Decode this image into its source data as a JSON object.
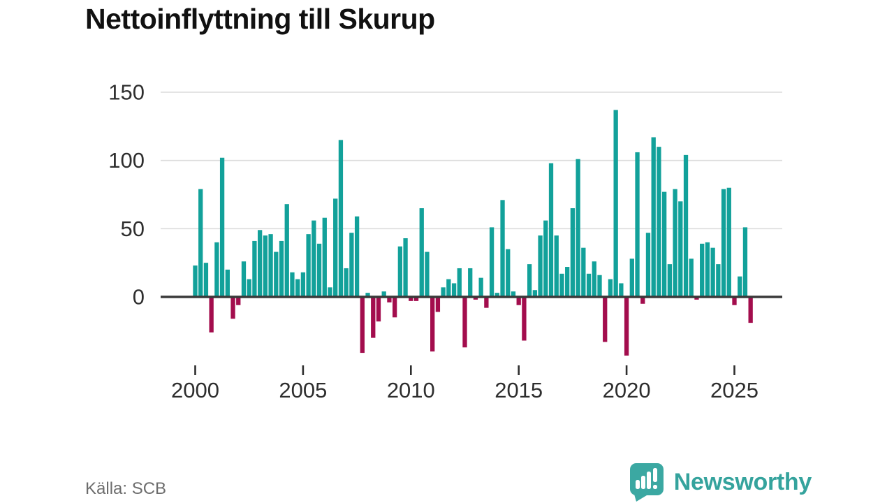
{
  "title": "Nettoinflyttning till Skurup",
  "source": "Källa: SCB",
  "brand": {
    "name": "Newsworthy",
    "color": "#3ba8a2"
  },
  "colors": {
    "positive_bar": "#12a19a",
    "negative_bar": "#a30d4d",
    "grid": "#dcdcdc",
    "axis": "#3a3a3a",
    "tick_text": "#2e2e2e",
    "muted_text": "#6d6d6d"
  },
  "chart_data": {
    "type": "bar",
    "title": "Nettoinflyttning till Skurup",
    "ylabel": "",
    "xlabel": "",
    "unit": "net migration per quarter (persons)",
    "frequency": "quarterly",
    "x_start": "2000Q1",
    "x_end": "2025Q4",
    "x_tick_years": [
      2000,
      2005,
      2010,
      2015,
      2020,
      2025
    ],
    "y_ticks": [
      0,
      50,
      100,
      150
    ],
    "ylim": [
      -50,
      158
    ],
    "grid": true,
    "legend": "none",
    "values": [
      23,
      79,
      25,
      -26,
      40,
      102,
      20,
      -16,
      -6,
      26,
      13,
      41,
      49,
      45,
      46,
      33,
      41,
      68,
      18,
      13,
      18,
      46,
      56,
      39,
      58,
      7,
      72,
      115,
      21,
      47,
      59,
      -41,
      3,
      -30,
      -18,
      4,
      -4,
      -15,
      37,
      43,
      -3,
      -3,
      65,
      33,
      -40,
      -11,
      7,
      13,
      10,
      21,
      -37,
      21,
      -2,
      14,
      -8,
      51,
      3,
      71,
      35,
      4,
      -6,
      -32,
      24,
      5,
      45,
      56,
      98,
      45,
      17,
      22,
      65,
      101,
      36,
      17,
      26,
      16,
      -33,
      13,
      137,
      10,
      -43,
      28,
      106,
      -5,
      47,
      117,
      110,
      77,
      24,
      79,
      70,
      104,
      28,
      -2,
      39,
      40,
      36,
      24,
      79,
      80,
      -6,
      15,
      51,
      -19
    ]
  }
}
